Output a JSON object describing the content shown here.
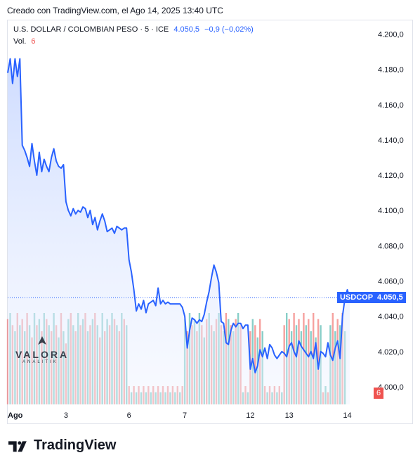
{
  "caption": "Creado con TradingView.com, el Ago 14, 2025 13:40 UTC",
  "legend": {
    "symbol": "U.S. DOLLAR / COLOMBIAN PESO · 5 · ICE",
    "price": "4.050,5",
    "change": "−0,9 (−0,02%)",
    "volume_label": "Vol.",
    "volume_value": "6"
  },
  "tags": {
    "symbol": "USDCOP",
    "price": "4.050,5",
    "volume": "6"
  },
  "watermark": {
    "brand": "VALORA",
    "sub": "ANALITIK"
  },
  "footer_brand": "TradingView",
  "colors": {
    "line": "#2962ff",
    "vol_up": "#26a69a",
    "vol_down": "#ef5350",
    "area_top": "#dbe5ff"
  },
  "chart_data": {
    "type": "line",
    "series": [
      {
        "name": "USDCOP",
        "values": [
          4178,
          4186,
          4172,
          4186,
          4176,
          4186,
          4137,
          4134,
          4130,
          4125,
          4138,
          4128,
          4120,
          4133,
          4122,
          4129,
          4125,
          4122,
          4130,
          4135,
          4128,
          4125,
          4124,
          4126,
          4105,
          4100,
          4097,
          4101,
          4098,
          4100,
          4099,
          4102,
          4101,
          4096,
          4100,
          4092,
          4096,
          4089,
          4094,
          4098,
          4094,
          4088,
          4089,
          4090,
          4087,
          4091,
          4090,
          4089,
          4090,
          4090,
          4072,
          4065,
          4055,
          4043,
          4047,
          4044,
          4049,
          4042,
          4047,
          4048,
          4049,
          4046,
          4056,
          4047,
          4049,
          4047,
          4048,
          4047,
          4047,
          4047,
          4047,
          4047,
          4045,
          4040,
          4022,
          4032,
          4039,
          4038,
          4036,
          4038,
          4037,
          4041,
          4048,
          4054,
          4062,
          4069,
          4065,
          4059,
          4037,
          4036,
          4025,
          4024,
          4032,
          4036,
          4034,
          4036,
          4036,
          4033,
          4035,
          4035,
          4010,
          4016,
          4008,
          4012,
          4021,
          4017,
          4022,
          4016,
          4024,
          4022,
          4018,
          4016,
          4018,
          4020,
          4019,
          4017,
          4023,
          4025,
          4020,
          4017,
          4026,
          4023,
          4021,
          4019,
          4017,
          4020,
          4016,
          4025,
          4010,
          4020,
          4019,
          4017,
          4025,
          4018,
          4015,
          4022,
          4026,
          4016,
          4040,
          4050,
          4055,
          4050.5
        ]
      }
    ],
    "volume": [
      {
        "v": 14,
        "up": false
      },
      {
        "v": 15,
        "up": true
      },
      {
        "v": 13,
        "up": false
      },
      {
        "v": 12,
        "up": true
      },
      {
        "v": 15,
        "up": false
      },
      {
        "v": 13,
        "up": true
      },
      {
        "v": 14,
        "up": false
      },
      {
        "v": 12,
        "up": true
      },
      {
        "v": 15,
        "up": false
      },
      {
        "v": 13,
        "up": true
      },
      {
        "v": 11,
        "up": false
      },
      {
        "v": 15,
        "up": true
      },
      {
        "v": 13,
        "up": false
      },
      {
        "v": 14,
        "up": true
      },
      {
        "v": 12,
        "up": false
      },
      {
        "v": 15,
        "up": true
      },
      {
        "v": 14,
        "up": false
      },
      {
        "v": 13,
        "up": true
      },
      {
        "v": 12,
        "up": false
      },
      {
        "v": 15,
        "up": true
      },
      {
        "v": 13,
        "up": false
      },
      {
        "v": 11,
        "up": true
      },
      {
        "v": 15,
        "up": false
      },
      {
        "v": 12,
        "up": true
      },
      {
        "v": 10,
        "up": false
      },
      {
        "v": 14,
        "up": true
      },
      {
        "v": 15,
        "up": false
      },
      {
        "v": 13,
        "up": true
      },
      {
        "v": 12,
        "up": false
      },
      {
        "v": 15,
        "up": true
      },
      {
        "v": 13,
        "up": false
      },
      {
        "v": 14,
        "up": true
      },
      {
        "v": 15,
        "up": false
      },
      {
        "v": 12,
        "up": true
      },
      {
        "v": 13,
        "up": false
      },
      {
        "v": 14,
        "up": true
      },
      {
        "v": 15,
        "up": false
      },
      {
        "v": 13,
        "up": true
      },
      {
        "v": 11,
        "up": false
      },
      {
        "v": 15,
        "up": true
      },
      {
        "v": 12,
        "up": false
      },
      {
        "v": 14,
        "up": true
      },
      {
        "v": 13,
        "up": false
      },
      {
        "v": 15,
        "up": true
      },
      {
        "v": 14,
        "up": false
      },
      {
        "v": 13,
        "up": true
      },
      {
        "v": 12,
        "up": false
      },
      {
        "v": 15,
        "up": true
      },
      {
        "v": 14,
        "up": false
      },
      {
        "v": 13,
        "up": true
      },
      {
        "v": 3,
        "up": false
      },
      {
        "v": 2,
        "up": true
      },
      {
        "v": 3,
        "up": false
      },
      {
        "v": 2,
        "up": true
      },
      {
        "v": 3,
        "up": false
      },
      {
        "v": 2,
        "up": true
      },
      {
        "v": 3,
        "up": false
      },
      {
        "v": 2,
        "up": true
      },
      {
        "v": 3,
        "up": false
      },
      {
        "v": 2,
        "up": true
      },
      {
        "v": 3,
        "up": false
      },
      {
        "v": 2,
        "up": true
      },
      {
        "v": 3,
        "up": false
      },
      {
        "v": 2,
        "up": true
      },
      {
        "v": 3,
        "up": false
      },
      {
        "v": 2,
        "up": true
      },
      {
        "v": 3,
        "up": false
      },
      {
        "v": 2,
        "up": true
      },
      {
        "v": 3,
        "up": false
      },
      {
        "v": 2,
        "up": true
      },
      {
        "v": 3,
        "up": false
      },
      {
        "v": 2,
        "up": true
      },
      {
        "v": 3,
        "up": false
      },
      {
        "v": 14,
        "up": true
      },
      {
        "v": 12,
        "up": false
      },
      {
        "v": 15,
        "up": true
      },
      {
        "v": 13,
        "up": false
      },
      {
        "v": 14,
        "up": true
      },
      {
        "v": 12,
        "up": false
      },
      {
        "v": 15,
        "up": true
      },
      {
        "v": 13,
        "up": false
      },
      {
        "v": 11,
        "up": true
      },
      {
        "v": 14,
        "up": false
      },
      {
        "v": 15,
        "up": true
      },
      {
        "v": 13,
        "up": false
      },
      {
        "v": 12,
        "up": true
      },
      {
        "v": 14,
        "up": false
      },
      {
        "v": 15,
        "up": true
      },
      {
        "v": 13,
        "up": false
      },
      {
        "v": 12,
        "up": true
      },
      {
        "v": 15,
        "up": false
      },
      {
        "v": 14,
        "up": true
      },
      {
        "v": 13,
        "up": false
      },
      {
        "v": 12,
        "up": true
      },
      {
        "v": 14,
        "up": false
      },
      {
        "v": 15,
        "up": true
      },
      {
        "v": 13,
        "up": false
      },
      {
        "v": 2,
        "up": true
      },
      {
        "v": 3,
        "up": false
      },
      {
        "v": 2,
        "up": true
      },
      {
        "v": 12,
        "up": false
      },
      {
        "v": 14,
        "up": true
      },
      {
        "v": 13,
        "up": false
      },
      {
        "v": 11,
        "up": true
      },
      {
        "v": 14,
        "up": false
      },
      {
        "v": 12,
        "up": true
      },
      {
        "v": 3,
        "up": false
      },
      {
        "v": 2,
        "up": true
      },
      {
        "v": 3,
        "up": false
      },
      {
        "v": 2,
        "up": true
      },
      {
        "v": 3,
        "up": false
      },
      {
        "v": 2,
        "up": true
      },
      {
        "v": 3,
        "up": false
      },
      {
        "v": 2,
        "up": true
      },
      {
        "v": 13,
        "up": false
      },
      {
        "v": 15,
        "up": true
      },
      {
        "v": 14,
        "up": false
      },
      {
        "v": 12,
        "up": true
      },
      {
        "v": 15,
        "up": false
      },
      {
        "v": 13,
        "up": true
      },
      {
        "v": 14,
        "up": false
      },
      {
        "v": 12,
        "up": true
      },
      {
        "v": 15,
        "up": false
      },
      {
        "v": 13,
        "up": true
      },
      {
        "v": 14,
        "up": false
      },
      {
        "v": 12,
        "up": true
      },
      {
        "v": 15,
        "up": false
      },
      {
        "v": 11,
        "up": true
      },
      {
        "v": 14,
        "up": false
      },
      {
        "v": 13,
        "up": true
      },
      {
        "v": 2,
        "up": false
      },
      {
        "v": 3,
        "up": true
      },
      {
        "v": 2,
        "up": false
      },
      {
        "v": 13,
        "up": true
      },
      {
        "v": 15,
        "up": false
      },
      {
        "v": 12,
        "up": true
      },
      {
        "v": 14,
        "up": false
      },
      {
        "v": 13,
        "up": true
      },
      {
        "v": 15,
        "up": false
      },
      {
        "v": 12,
        "up": true
      }
    ],
    "x_labels": [
      {
        "label": "Ago",
        "index": 0
      },
      {
        "label": "3",
        "index": 24
      },
      {
        "label": "6",
        "index": 50
      },
      {
        "label": "7",
        "index": 73
      },
      {
        "label": "12",
        "index": 100
      },
      {
        "label": "13",
        "index": 116
      },
      {
        "label": "14",
        "index": 140
      }
    ],
    "y_ticks": [
      4000,
      4020,
      4040,
      4060,
      4080,
      4100,
      4120,
      4140,
      4160,
      4180,
      4200
    ],
    "y_tick_labels": [
      "4.000,0",
      "4.020,0",
      "4.040,0",
      "4.060,0",
      "4.080,0",
      "4.100,0",
      "4.120,0",
      "4.140,0",
      "4.160,0",
      "4.180,0",
      "4.200,0"
    ],
    "ylim": [
      3990,
      4205
    ],
    "last_value": 4050.5,
    "grid": false
  }
}
